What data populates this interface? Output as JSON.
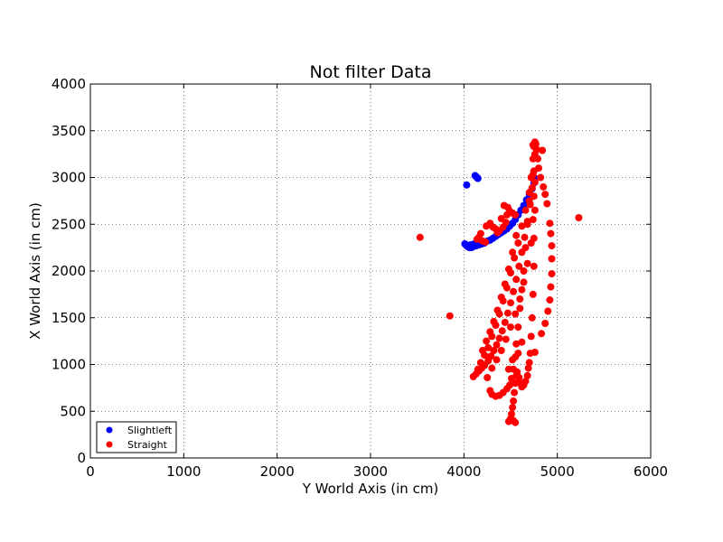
{
  "chart_data": {
    "type": "scatter",
    "title": "Not filter Data",
    "xlabel": "Y World Axis (in cm)",
    "ylabel": "X World Axis (in cm)",
    "xlim": [
      0,
      6000
    ],
    "ylim": [
      0,
      4000
    ],
    "xticks": [
      "0",
      "1000",
      "2000",
      "3000",
      "4000",
      "5000",
      "6000"
    ],
    "yticks": [
      "0",
      "500",
      "1000",
      "1500",
      "2000",
      "2500",
      "3000",
      "3500",
      "4000"
    ],
    "grid": true,
    "legend_position": "lower-left",
    "series": [
      {
        "name": "Slightleft",
        "color": "#0000ff",
        "points": [
          [
            4130,
            3010
          ],
          [
            4140,
            3000
          ],
          [
            4120,
            3020
          ],
          [
            4150,
            2990
          ],
          [
            4030,
            2920
          ],
          [
            4010,
            2290
          ],
          [
            4020,
            2280
          ],
          [
            4030,
            2270
          ],
          [
            4040,
            2260
          ],
          [
            4060,
            2250
          ],
          [
            4080,
            2250
          ],
          [
            4100,
            2260
          ],
          [
            4130,
            2270
          ],
          [
            4160,
            2280
          ],
          [
            4190,
            2290
          ],
          [
            4220,
            2300
          ],
          [
            4250,
            2320
          ],
          [
            4280,
            2330
          ],
          [
            4310,
            2350
          ],
          [
            4340,
            2370
          ],
          [
            4370,
            2390
          ],
          [
            4400,
            2410
          ],
          [
            4430,
            2430
          ],
          [
            4460,
            2450
          ],
          [
            4490,
            2480
          ],
          [
            4520,
            2510
          ],
          [
            4550,
            2550
          ],
          [
            4580,
            2600
          ],
          [
            4610,
            2650
          ],
          [
            4640,
            2700
          ],
          [
            4670,
            2760
          ],
          [
            4700,
            2820
          ],
          [
            4730,
            2880
          ],
          [
            4750,
            2940
          ],
          [
            4760,
            2990
          ],
          [
            4050,
            2270
          ],
          [
            4070,
            2280
          ],
          [
            4110,
            2290
          ],
          [
            4140,
            2300
          ],
          [
            4200,
            2310
          ]
        ]
      },
      {
        "name": "Straight",
        "color": "#ff0000",
        "points": [
          [
            3530,
            2360
          ],
          [
            3850,
            1520
          ],
          [
            5230,
            2570
          ],
          [
            4760,
            3380
          ],
          [
            4770,
            3360
          ],
          [
            4780,
            3300
          ],
          [
            4790,
            3200
          ],
          [
            4800,
            3100
          ],
          [
            4820,
            3000
          ],
          [
            4850,
            2900
          ],
          [
            4870,
            2820
          ],
          [
            4890,
            2720
          ],
          [
            4920,
            2510
          ],
          [
            4930,
            2400
          ],
          [
            4940,
            2270
          ],
          [
            4940,
            2130
          ],
          [
            4940,
            1970
          ],
          [
            4930,
            1830
          ],
          [
            4920,
            1690
          ],
          [
            4900,
            1570
          ],
          [
            4870,
            1440
          ],
          [
            4830,
            1330
          ],
          [
            4760,
            1130
          ],
          [
            4840,
            3290
          ],
          [
            4740,
            3350
          ],
          [
            4750,
            3330
          ],
          [
            4100,
            870
          ],
          [
            4130,
            900
          ],
          [
            4160,
            930
          ],
          [
            4190,
            960
          ],
          [
            4220,
            990
          ],
          [
            4260,
            1040
          ],
          [
            4290,
            1090
          ],
          [
            4320,
            1150
          ],
          [
            4350,
            1210
          ],
          [
            4380,
            1280
          ],
          [
            4410,
            1360
          ],
          [
            4440,
            1450
          ],
          [
            4470,
            1550
          ],
          [
            4500,
            1660
          ],
          [
            4530,
            1780
          ],
          [
            4560,
            1910
          ],
          [
            4590,
            2050
          ],
          [
            4620,
            2200
          ],
          [
            4650,
            2360
          ],
          [
            4680,
            2530
          ],
          [
            4710,
            2710
          ],
          [
            4730,
            2890
          ],
          [
            4750,
            3070
          ],
          [
            4760,
            3250
          ],
          [
            4280,
            720
          ],
          [
            4300,
            680
          ],
          [
            4340,
            660
          ],
          [
            4380,
            670
          ],
          [
            4420,
            700
          ],
          [
            4460,
            740
          ],
          [
            4490,
            780
          ],
          [
            4510,
            850
          ],
          [
            4530,
            950
          ],
          [
            4550,
            1080
          ],
          [
            4560,
            1220
          ],
          [
            4580,
            1400
          ],
          [
            4600,
            1600
          ],
          [
            4620,
            1800
          ],
          [
            4640,
            2000
          ],
          [
            4660,
            2250
          ],
          [
            4680,
            2500
          ],
          [
            4700,
            2750
          ],
          [
            4720,
            3000
          ],
          [
            4740,
            3200
          ],
          [
            4480,
            390
          ],
          [
            4500,
            420
          ],
          [
            4510,
            470
          ],
          [
            4520,
            540
          ],
          [
            4530,
            610
          ],
          [
            4540,
            700
          ],
          [
            4550,
            800
          ],
          [
            4560,
            880
          ],
          [
            4570,
            920
          ],
          [
            4590,
            860
          ],
          [
            4600,
            800
          ],
          [
            4620,
            760
          ],
          [
            4640,
            780
          ],
          [
            4660,
            820
          ],
          [
            4680,
            880
          ],
          [
            4690,
            960
          ],
          [
            4700,
            1020
          ],
          [
            4710,
            1120
          ],
          [
            4720,
            1300
          ],
          [
            4730,
            1500
          ],
          [
            4740,
            1750
          ],
          [
            4750,
            2050
          ],
          [
            4750,
            2350
          ],
          [
            4760,
            2650
          ],
          [
            4760,
            2950
          ],
          [
            4240,
            2480
          ],
          [
            4280,
            2510
          ],
          [
            4310,
            2470
          ],
          [
            4340,
            2450
          ],
          [
            4380,
            2430
          ],
          [
            4420,
            2470
          ],
          [
            4450,
            2520
          ],
          [
            4460,
            2600
          ],
          [
            4470,
            2680
          ],
          [
            4490,
            2640
          ],
          [
            4520,
            2620
          ],
          [
            4550,
            2600
          ],
          [
            4180,
            2400
          ],
          [
            4160,
            2360
          ],
          [
            4200,
            2320
          ],
          [
            4230,
            2310
          ],
          [
            4140,
            2340
          ],
          [
            4360,
            2410
          ],
          [
            4400,
            2560
          ],
          [
            4430,
            2700
          ],
          [
            4200,
            1150
          ],
          [
            4240,
            1250
          ],
          [
            4280,
            1350
          ],
          [
            4320,
            1460
          ],
          [
            4360,
            1580
          ],
          [
            4400,
            1720
          ],
          [
            4440,
            1860
          ],
          [
            4480,
            2020
          ],
          [
            4520,
            2200
          ],
          [
            4560,
            2380
          ],
          [
            4150,
            950
          ],
          [
            4180,
            1020
          ],
          [
            4220,
            1100
          ],
          [
            4260,
            1180
          ],
          [
            4300,
            1300
          ],
          [
            4340,
            1420
          ],
          [
            4380,
            1540
          ],
          [
            4420,
            1680
          ],
          [
            4460,
            1820
          ],
          [
            4500,
            1980
          ],
          [
            4540,
            2140
          ],
          [
            4580,
            2300
          ],
          [
            4620,
            2480
          ],
          [
            4660,
            2650
          ],
          [
            4700,
            2840
          ],
          [
            4740,
            3030
          ],
          [
            4550,
            380
          ],
          [
            4530,
            400
          ],
          [
            4580,
            1120
          ],
          [
            4620,
            1240
          ],
          [
            4250,
            860
          ],
          [
            4300,
            960
          ],
          [
            4350,
            1050
          ],
          [
            4400,
            1150
          ],
          [
            4450,
            1270
          ],
          [
            4500,
            1400
          ],
          [
            4550,
            1540
          ],
          [
            4600,
            1700
          ],
          [
            4640,
            1880
          ],
          [
            4680,
            2080
          ],
          [
            4720,
            2300
          ],
          [
            4740,
            2550
          ],
          [
            4750,
            2800
          ],
          [
            4480,
            950
          ],
          [
            4520,
            1050
          ]
        ]
      }
    ]
  }
}
